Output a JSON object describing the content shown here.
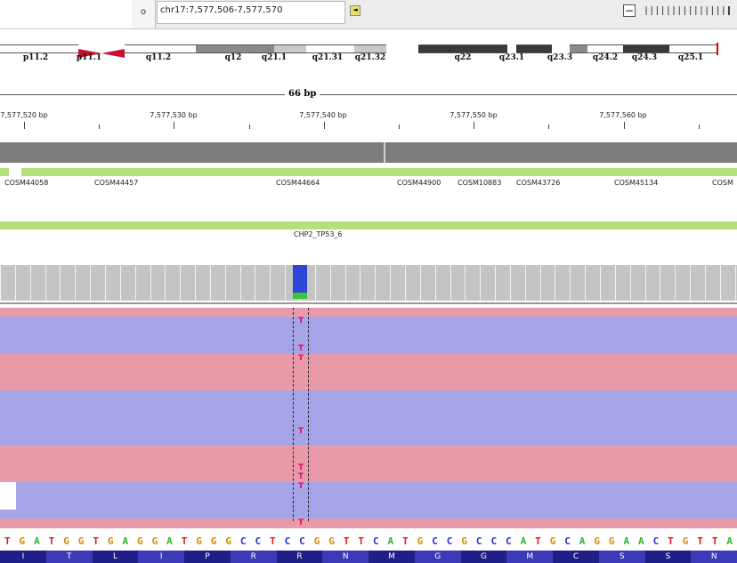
{
  "toolbar": {
    "go_label": "o",
    "locus": "chr17:7,577,506-7,577,570",
    "zoom_minus": "−"
  },
  "ideogram": {
    "bands": [
      {
        "label": "p11.2",
        "color": "#ffffff"
      },
      {
        "label": "p11.1",
        "color": "#c8102e"
      },
      {
        "label": "q11.2",
        "color": "#ffffff"
      },
      {
        "label": "q12",
        "color": "#8a8a8a"
      },
      {
        "label": "q21.1",
        "color": "#c8c8c8"
      },
      {
        "label": "q21.31",
        "color": "#ffffff"
      },
      {
        "label": "q21.32",
        "color": "#c8c8c8"
      },
      {
        "label": "q22",
        "color": "#3a3a3a"
      },
      {
        "label": "q23.1",
        "color": "#3a3a3a"
      },
      {
        "label": "q23.3",
        "color": "#8a8a8a"
      },
      {
        "label": "q24.2",
        "color": "#ffffff"
      },
      {
        "label": "q24.3",
        "color": "#3a3a3a"
      },
      {
        "label": "q25.1",
        "color": "#ffffff"
      }
    ]
  },
  "ruler": {
    "span": "66 bp",
    "positions": [
      "7,577,520 bp",
      "7,577,530 bp",
      "7,577,540 bp",
      "7,577,550 bp",
      "7,577,560 bp"
    ]
  },
  "cosmic": {
    "color": "#b4e07a",
    "features": [
      "COSM44058",
      "COSM44457",
      "COSM44664",
      "COSM44900",
      "COSM10883",
      "COSM43726",
      "COSM45134",
      "COSM"
    ]
  },
  "amplicon": {
    "label": "CHP2_TP53_6",
    "color": "#b4e07a"
  },
  "coverage": {
    "color": "#c4c4c4",
    "snp_ref_color": "#2f45d8",
    "snp_alt_color": "#3ec43e"
  },
  "reads": {
    "forward_color": "#e89aa8",
    "reverse_color": "#a4a4e6",
    "mismatch_base": "T",
    "strands": [
      "f",
      "r",
      "r",
      "r",
      "r",
      "f",
      "f",
      "f",
      "f",
      "r",
      "r",
      "r",
      "r",
      "r",
      "r",
      "f",
      "f",
      "f",
      "f",
      "r",
      "r",
      "r",
      "r",
      "f"
    ],
    "mismatch_rows": [
      1,
      4,
      5,
      13,
      17,
      18,
      19,
      23
    ]
  },
  "sequence": {
    "bases": "TGATGGTGAGGATGGGCCTCCGGTTCATGCCGCCCATGCAGGAACTGTTA",
    "colors": {
      "A": "#2cb52c",
      "C": "#2a2ad0",
      "G": "#d68a00",
      "T": "#e01a1a"
    }
  },
  "translation": {
    "amino_acids": [
      "I",
      "T",
      "L",
      "I",
      "P",
      "R",
      "R",
      "N",
      "M",
      "G",
      "G",
      "M",
      "C",
      "S",
      "S",
      "N"
    ],
    "colors": [
      "#1f1f88",
      "#3b3bb8"
    ]
  }
}
